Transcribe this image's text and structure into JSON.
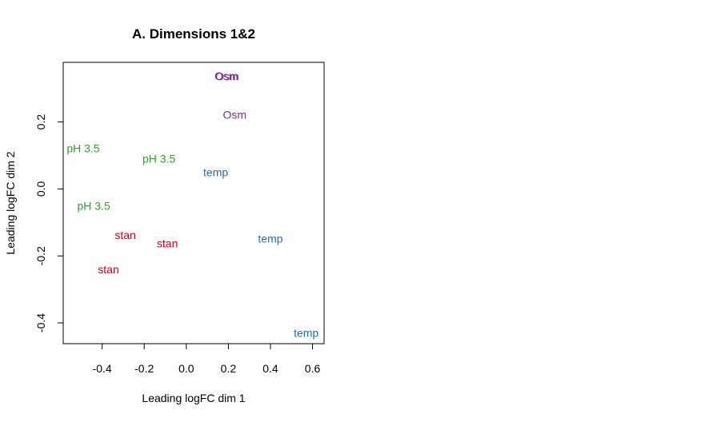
{
  "chart_data": {
    "type": "scatter",
    "title": "A. Dimensions 1&2",
    "xlabel": "Leading logFC dim 1",
    "ylabel": "Leading logFC dim 2",
    "xlim": [
      -0.585,
      0.655
    ],
    "ylim": [
      -0.462,
      0.378
    ],
    "xticks": [
      -0.4,
      -0.2,
      0.0,
      0.2,
      0.4,
      0.6
    ],
    "xtick_labels": [
      "-0.4",
      "-0.2",
      "0.0",
      "0.2",
      "0.4",
      "0.6"
    ],
    "yticks": [
      -0.4,
      -0.2,
      0.0,
      0.2
    ],
    "ytick_labels": [
      "-0.4",
      "-0.2",
      "0.0",
      "0.2"
    ],
    "grid": false,
    "legend": "none",
    "colors": {
      "Osm": "#7b3294",
      "pH 3.5": "#33a02c",
      "temp": "#2b6aa8",
      "stan": "#cc0022"
    },
    "points": [
      {
        "label": "Osm",
        "group": "Osm",
        "x": 0.19,
        "y": 0.338
      },
      {
        "label": "Osm",
        "group": "Osm",
        "x": 0.195,
        "y": 0.336
      },
      {
        "label": "Osm",
        "group": "Osm",
        "x": 0.23,
        "y": 0.222
      },
      {
        "label": "pH 3.5",
        "group": "pH 3.5",
        "x": -0.49,
        "y": 0.122
      },
      {
        "label": "pH 3.5",
        "group": "pH 3.5",
        "x": -0.13,
        "y": 0.09
      },
      {
        "label": "pH 3.5",
        "group": "pH 3.5",
        "x": -0.44,
        "y": -0.05
      },
      {
        "label": "temp",
        "group": "temp",
        "x": 0.14,
        "y": 0.05
      },
      {
        "label": "temp",
        "group": "temp",
        "x": 0.4,
        "y": -0.148
      },
      {
        "label": "temp",
        "group": "temp",
        "x": 0.57,
        "y": -0.43
      },
      {
        "label": "stan",
        "group": "stan",
        "x": -0.29,
        "y": -0.138
      },
      {
        "label": "stan",
        "group": "stan",
        "x": -0.09,
        "y": -0.163
      },
      {
        "label": "stan",
        "group": "stan",
        "x": -0.37,
        "y": -0.24
      }
    ]
  }
}
